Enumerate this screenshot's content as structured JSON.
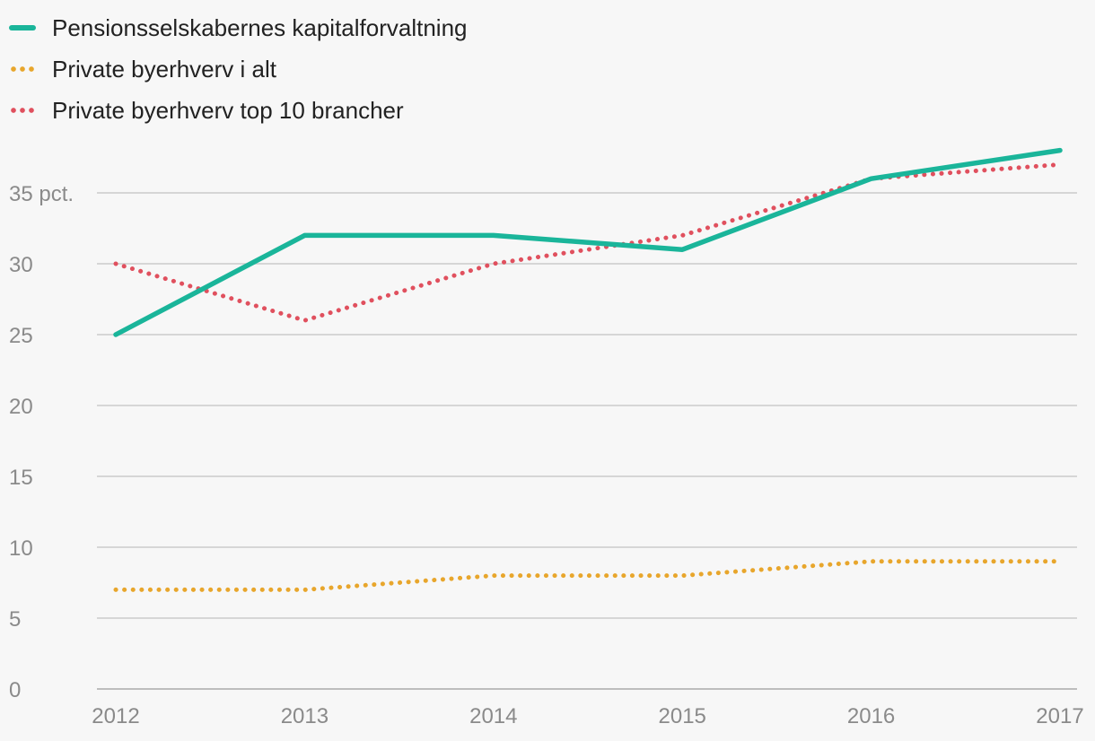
{
  "chart_data": {
    "type": "line",
    "title": "",
    "xlabel": "",
    "ylabel": "",
    "x": [
      "2012",
      "2013",
      "2014",
      "2015",
      "2016",
      "2017"
    ],
    "ylim": [
      0,
      38
    ],
    "y_ticks": [
      0,
      5,
      10,
      15,
      20,
      25,
      30,
      35
    ],
    "y_tick_labels": [
      "0",
      "5",
      "10",
      "15",
      "20",
      "25",
      "30",
      "35 pct."
    ],
    "grid": true,
    "legend_position": "top-left",
    "series": [
      {
        "name": "Pensionsselskabernes kapitalforvaltning",
        "values": [
          25,
          32,
          32,
          31,
          36,
          38
        ],
        "color": "#1ab59a",
        "style": "solid"
      },
      {
        "name": "Private byerhverv i alt",
        "values": [
          7,
          7,
          8,
          8,
          9,
          9
        ],
        "color": "#e8a62c",
        "style": "dotted"
      },
      {
        "name": "Private byerhverv top 10 brancher",
        "values": [
          30,
          26,
          30,
          32,
          36,
          37
        ],
        "color": "#e0505e",
        "style": "dotted"
      }
    ]
  }
}
